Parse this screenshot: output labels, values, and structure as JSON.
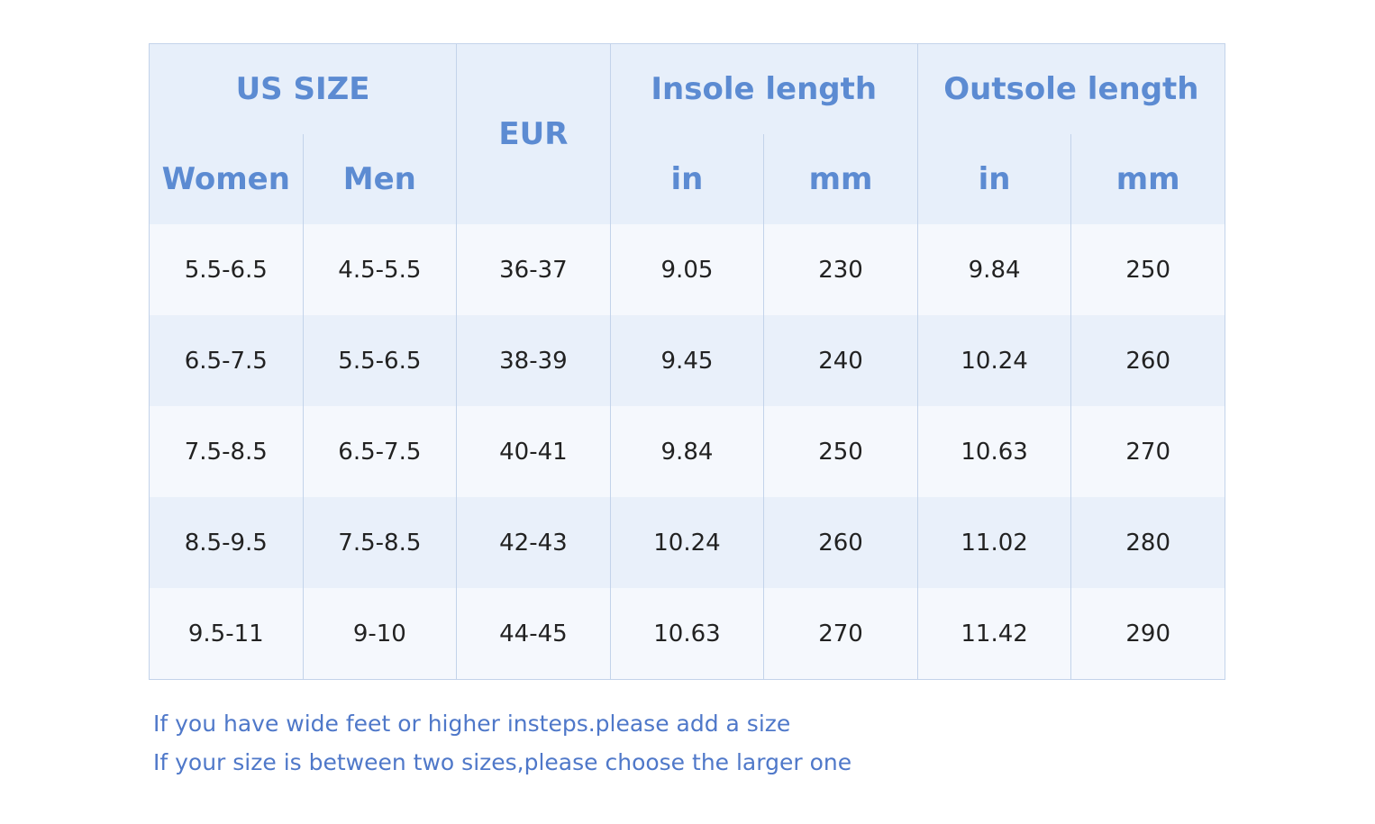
{
  "table": {
    "groups": [
      "US SIZE",
      "EUR",
      "Insole length",
      "Outsole length"
    ],
    "subheaders": [
      "Women",
      "Men",
      "in",
      "mm",
      "in",
      "mm"
    ],
    "rows": [
      [
        "5.5-6.5",
        "4.5-5.5",
        "36-37",
        "9.05",
        "230",
        "9.84",
        "250"
      ],
      [
        "6.5-7.5",
        "5.5-6.5",
        "38-39",
        "9.45",
        "240",
        "10.24",
        "260"
      ],
      [
        "7.5-8.5",
        "6.5-7.5",
        "40-41",
        "9.84",
        "250",
        "10.63",
        "270"
      ],
      [
        "8.5-9.5",
        "7.5-8.5",
        "42-43",
        "10.24",
        "260",
        "11.02",
        "280"
      ],
      [
        "9.5-11",
        "9-10",
        "44-45",
        "10.63",
        "270",
        "11.42",
        "290"
      ]
    ]
  },
  "notes": [
    "If you have wide feet or higher insteps.please add a size",
    "If your size is between two sizes,please choose the larger one"
  ]
}
